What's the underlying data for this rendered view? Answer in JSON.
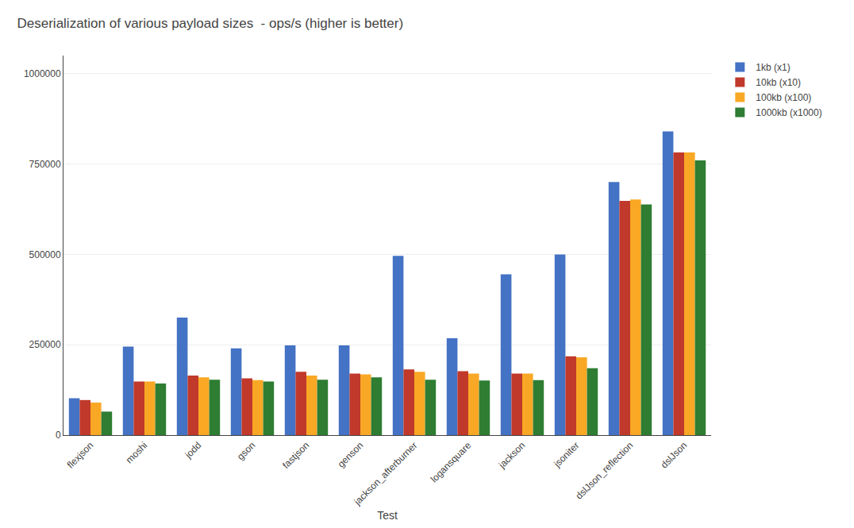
{
  "chart_data": {
    "type": "bar",
    "title": "Deserialization of various payload sizes  - ops/s (higher is better)",
    "xlabel": "Test",
    "categories": [
      "flexjson",
      "moshi",
      "jodd",
      "gson",
      "fastjson",
      "genson",
      "jackson_afterburner",
      "logansquare",
      "jackson",
      "jsoniter",
      "dslJson_reflection",
      "dslJson"
    ],
    "series": [
      {
        "name": "1kb (x1)",
        "color": "#4472C4",
        "values": [
          102000,
          245000,
          325000,
          240000,
          248000,
          248000,
          496000,
          268000,
          445000,
          500000,
          700000,
          840000
        ]
      },
      {
        "name": "10kb (x10)",
        "color": "#C0392B",
        "values": [
          97000,
          148000,
          165000,
          157000,
          175000,
          170000,
          182000,
          177000,
          170000,
          218000,
          648000,
          782000
        ]
      },
      {
        "name": "100kb (x100)",
        "color": "#F9A825",
        "values": [
          90000,
          148000,
          160000,
          152000,
          165000,
          168000,
          175000,
          170000,
          170000,
          215000,
          652000,
          782000
        ]
      },
      {
        "name": "1000kb (x1000)",
        "color": "#2E7D32",
        "values": [
          65000,
          143000,
          153000,
          148000,
          153000,
          160000,
          153000,
          151000,
          152000,
          185000,
          638000,
          760000
        ]
      }
    ],
    "ylim": [
      0,
      1050000
    ],
    "yticks": [
      0,
      250000,
      500000,
      750000,
      1000000
    ],
    "grid": true,
    "legend": "right"
  }
}
